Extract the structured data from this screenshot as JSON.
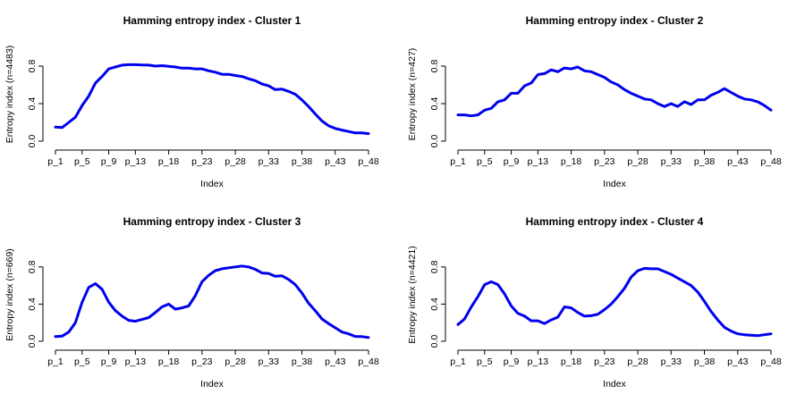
{
  "figure": {
    "line_color": "#0000ee",
    "background": "#ffffff"
  },
  "chart_data": [
    {
      "type": "line",
      "title": "Hamming entropy index - Cluster 1",
      "xlabel": "Index",
      "ylabel": "Entropy index (n=4483)",
      "x_tick_labels": [
        "p_1",
        "p_5",
        "p_9",
        "p_13",
        "p_18",
        "p_23",
        "p_28",
        "p_33",
        "p_38",
        "p_43",
        "p_48"
      ],
      "x_tick_positions": [
        1,
        5,
        9,
        13,
        18,
        23,
        28,
        33,
        38,
        43,
        48
      ],
      "y_ticks": [
        0.0,
        0.4,
        0.8
      ],
      "y_tick_labels": [
        "0.0",
        "0.4",
        "0.8"
      ],
      "ylim": [
        0,
        1
      ],
      "xlim": [
        1,
        48
      ],
      "series": [
        {
          "values": [
            0.15,
            0.145,
            0.2,
            0.255,
            0.38,
            0.48,
            0.62,
            0.69,
            0.77,
            0.79,
            0.81,
            0.815,
            0.815,
            0.812,
            0.81,
            0.8,
            0.805,
            0.798,
            0.79,
            0.778,
            0.778,
            0.77,
            0.77,
            0.75,
            0.735,
            0.712,
            0.712,
            0.7,
            0.69,
            0.665,
            0.645,
            0.61,
            0.59,
            0.55,
            0.555,
            0.53,
            0.5,
            0.44,
            0.37,
            0.29,
            0.215,
            0.165,
            0.135,
            0.118,
            0.103,
            0.088,
            0.088,
            0.08
          ]
        }
      ]
    },
    {
      "type": "line",
      "title": "Hamming entropy index - Cluster 2",
      "xlabel": "Index",
      "ylabel": "Entropy index (n=427)",
      "x_tick_labels": [
        "p_1",
        "p_5",
        "p_9",
        "p_13",
        "p_18",
        "p_23",
        "p_28",
        "p_33",
        "p_38",
        "p_43",
        "p_48"
      ],
      "x_tick_positions": [
        1,
        5,
        9,
        13,
        18,
        23,
        28,
        33,
        38,
        43,
        48
      ],
      "y_ticks": [
        0.0,
        0.4,
        0.8
      ],
      "y_tick_labels": [
        "0.0",
        "0.4",
        "0.8"
      ],
      "ylim": [
        0,
        1
      ],
      "xlim": [
        1,
        48
      ],
      "series": [
        {
          "values": [
            0.28,
            0.28,
            0.27,
            0.28,
            0.33,
            0.35,
            0.42,
            0.44,
            0.51,
            0.51,
            0.59,
            0.62,
            0.71,
            0.72,
            0.76,
            0.74,
            0.78,
            0.77,
            0.79,
            0.75,
            0.74,
            0.71,
            0.68,
            0.63,
            0.6,
            0.55,
            0.51,
            0.48,
            0.45,
            0.44,
            0.4,
            0.37,
            0.4,
            0.37,
            0.42,
            0.39,
            0.44,
            0.44,
            0.49,
            0.52,
            0.56,
            0.52,
            0.48,
            0.45,
            0.44,
            0.42,
            0.38,
            0.33
          ]
        }
      ]
    },
    {
      "type": "line",
      "title": "Hamming entropy index - Cluster 3",
      "xlabel": "Index",
      "ylabel": "Entropy index (n=669)",
      "x_tick_labels": [
        "p_1",
        "p_5",
        "p_9",
        "p_13",
        "p_18",
        "p_23",
        "p_28",
        "p_33",
        "p_38",
        "p_43",
        "p_48"
      ],
      "x_tick_positions": [
        1,
        5,
        9,
        13,
        18,
        23,
        28,
        33,
        38,
        43,
        48
      ],
      "y_ticks": [
        0.0,
        0.4,
        0.8
      ],
      "y_tick_labels": [
        "0.0",
        "0.4",
        "0.8"
      ],
      "ylim": [
        0,
        1
      ],
      "xlim": [
        1,
        48
      ],
      "series": [
        {
          "values": [
            0.05,
            0.055,
            0.1,
            0.2,
            0.42,
            0.58,
            0.62,
            0.56,
            0.42,
            0.33,
            0.27,
            0.225,
            0.215,
            0.235,
            0.255,
            0.31,
            0.37,
            0.4,
            0.345,
            0.36,
            0.38,
            0.49,
            0.64,
            0.71,
            0.76,
            0.78,
            0.79,
            0.8,
            0.81,
            0.8,
            0.775,
            0.735,
            0.73,
            0.7,
            0.705,
            0.665,
            0.61,
            0.52,
            0.41,
            0.33,
            0.24,
            0.19,
            0.145,
            0.1,
            0.08,
            0.052,
            0.05,
            0.04
          ]
        }
      ]
    },
    {
      "type": "line",
      "title": "Hamming entropy index - Cluster 4",
      "xlabel": "Index",
      "ylabel": "Entropy index (n=4421)",
      "x_tick_labels": [
        "p_1",
        "p_5",
        "p_9",
        "p_13",
        "p_18",
        "p_23",
        "p_28",
        "p_33",
        "p_38",
        "p_43",
        "p_48"
      ],
      "x_tick_positions": [
        1,
        5,
        9,
        13,
        18,
        23,
        28,
        33,
        38,
        43,
        48
      ],
      "y_ticks": [
        0.0,
        0.4,
        0.8
      ],
      "y_tick_labels": [
        "0.0",
        "0.4",
        "0.8"
      ],
      "ylim": [
        0,
        1
      ],
      "xlim": [
        1,
        48
      ],
      "series": [
        {
          "values": [
            0.18,
            0.24,
            0.37,
            0.48,
            0.61,
            0.64,
            0.61,
            0.51,
            0.38,
            0.3,
            0.27,
            0.22,
            0.22,
            0.19,
            0.23,
            0.26,
            0.37,
            0.36,
            0.31,
            0.27,
            0.275,
            0.29,
            0.34,
            0.4,
            0.48,
            0.57,
            0.69,
            0.76,
            0.785,
            0.78,
            0.78,
            0.75,
            0.72,
            0.68,
            0.64,
            0.6,
            0.53,
            0.43,
            0.32,
            0.23,
            0.15,
            0.11,
            0.08,
            0.07,
            0.065,
            0.06,
            0.07,
            0.08
          ]
        }
      ]
    }
  ]
}
